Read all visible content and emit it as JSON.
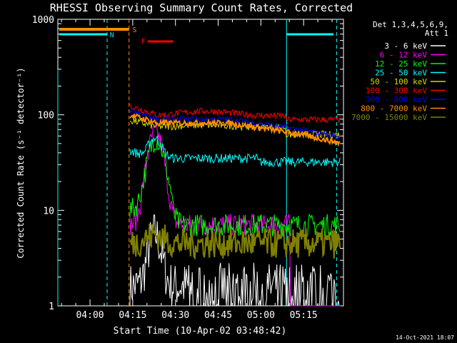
{
  "chart_data": {
    "type": "line",
    "title": "RHESSI Observing Summary Count Rates, Corrected",
    "xlabel": "Start Time (10-Apr-02 03:48:42)",
    "ylabel": "Corrected Count Rate (s⁻¹ detector⁻¹)",
    "y_scale": "log",
    "ylim": [
      1,
      1000
    ],
    "xlim_minutes_after_start": [
      0,
      100.3
    ],
    "x_tick_labels": [
      "04:00",
      "04:15",
      "04:30",
      "04:45",
      "05:00",
      "05:15"
    ],
    "y_tick_labels": [
      "1",
      "10",
      "100",
      "1000"
    ],
    "legend_header": [
      "Det 1,3,4,5,6,9,",
      "Att 1"
    ],
    "legend_position": "right",
    "footer_date": "14-Oct-2021 18:07",
    "annotations": [
      {
        "text": "S",
        "color": "#ff8c00"
      },
      {
        "text": "N",
        "color": "#00d8ff"
      },
      {
        "text": "F",
        "color": "#ff0000"
      }
    ],
    "series": [
      {
        "name": "3 - 6 keV",
        "color": "#ffffff"
      },
      {
        "name": "6 - 12 keV",
        "color": "#ff00ff"
      },
      {
        "name": "12 - 25 keV",
        "color": "#00ff00"
      },
      {
        "name": "25 - 50 keV",
        "color": "#00ffff"
      },
      {
        "name": "50 - 100 keV",
        "color": "#d8d800"
      },
      {
        "name": "100 - 300 keV",
        "color": "#ff0000"
      },
      {
        "name": "300 - 800 keV",
        "color": "#0000ff"
      },
      {
        "name": "800 - 7000 keV",
        "color": "#ff8c00"
      },
      {
        "name": "7000 - 15000 keV",
        "color": "#808000"
      }
    ]
  }
}
